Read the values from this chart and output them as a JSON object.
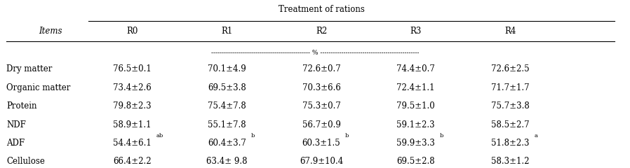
{
  "title": "Treatment of rations",
  "col_header_items": "Items",
  "col_headers": [
    "R0",
    "R1",
    "R2",
    "R3",
    "R4"
  ],
  "percent_line": "----------------------------------------------- % -----------------------------------------------",
  "rows": [
    [
      "Dry matter",
      "76.5±0.1",
      "70.1±4.9",
      "72.6±0.7",
      "74.4±0.7",
      "72.6±2.5"
    ],
    [
      "Organic matter",
      "73.4±2.6",
      "69.5±3.8",
      "70.3±6.6",
      "72.4±1.1",
      "71.7±1.7"
    ],
    [
      "Protein",
      "79.8±2.3",
      "75.4±7.8",
      "75.3±0.7",
      "79.5±1.0",
      "75.7±3.8"
    ],
    [
      "NDF",
      "58.9±1.1",
      "55.1±7.8",
      "56.7±0.9",
      "59.1±2.3",
      "58.5±2.7"
    ],
    [
      "ADF",
      "54.4±6.1",
      "60.4±3.7",
      "60.3±1.5",
      "59.9±3.3",
      "51.8±2.3"
    ],
    [
      "Cellulose",
      "66.4±2.2",
      "63.4± 9.8",
      "67.9±10.4",
      "69.5±2.8",
      "58.3±1.2"
    ]
  ],
  "adf_superscripts": [
    "ab",
    "b",
    "b",
    "b",
    "a"
  ],
  "bg_color": "#ffffff",
  "text_color": "#000000",
  "font_size": 8.5,
  "sup_font_size": 6.0
}
